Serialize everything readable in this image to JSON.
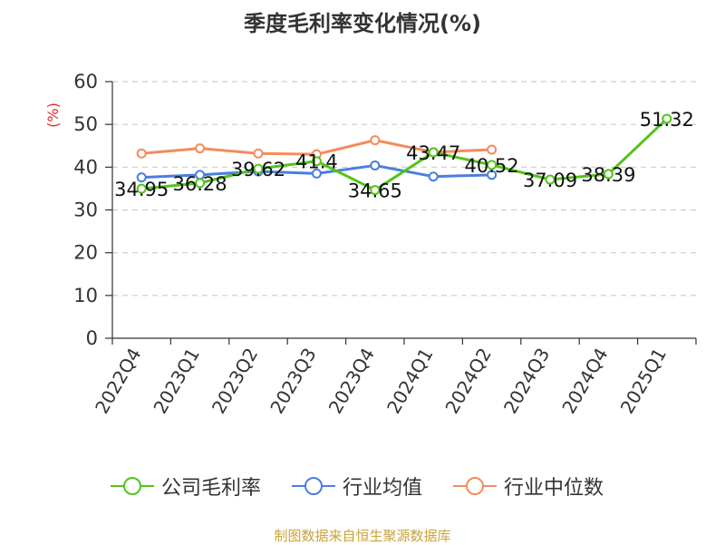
{
  "chart_data": {
    "type": "line",
    "title": "季度毛利率变化情况(%)",
    "ylabel": "(%)",
    "xlabel": "",
    "ylim": [
      0,
      60
    ],
    "yticks": [
      0,
      10,
      20,
      30,
      40,
      50,
      60
    ],
    "categories": [
      "2022Q4",
      "2023Q1",
      "2023Q2",
      "2023Q3",
      "2023Q4",
      "2024Q1",
      "2024Q2",
      "2024Q3",
      "2024Q4",
      "2025Q1"
    ],
    "grid": true,
    "legend_position": "bottom",
    "series": [
      {
        "name": "公司毛利率",
        "color": "#52c41a",
        "values": [
          34.95,
          36.28,
          39.62,
          41.4,
          34.65,
          43.47,
          40.52,
          37.09,
          38.39,
          51.32
        ],
        "labels": [
          "34.95",
          "36.28",
          "39.62",
          "41.4",
          "34.65",
          "43.47",
          "40.52",
          "37.09",
          "38.39",
          "51.32"
        ]
      },
      {
        "name": "行业均值",
        "color": "#4a7fdc",
        "values": [
          37.6,
          38.2,
          39.0,
          38.5,
          40.4,
          37.8,
          38.2,
          null,
          null,
          null
        ]
      },
      {
        "name": "行业中位数",
        "color": "#f58b5c",
        "values": [
          43.2,
          44.4,
          43.2,
          43.0,
          46.3,
          43.5,
          44.1,
          null,
          null,
          null
        ]
      }
    ],
    "source": "制图数据来自恒生聚源数据库"
  }
}
